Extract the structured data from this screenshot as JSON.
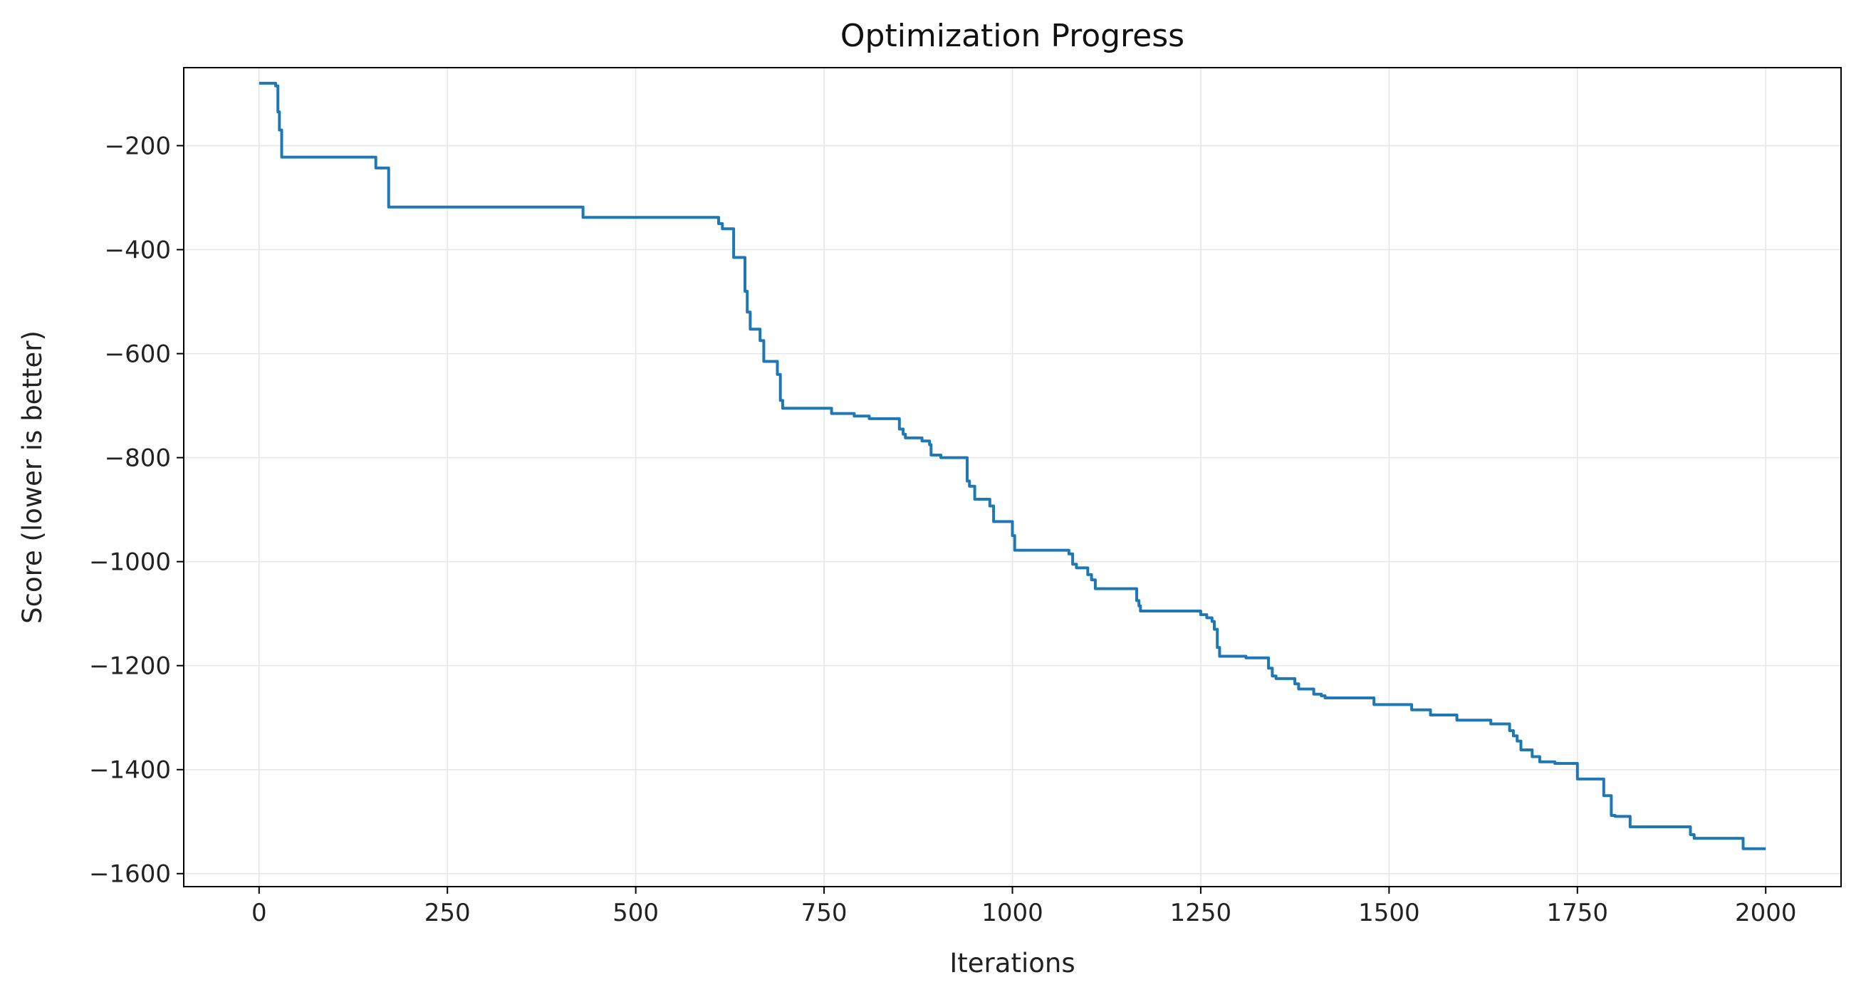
{
  "chart_data": {
    "type": "line",
    "title": "Optimization Progress",
    "xlabel": "Iterations",
    "ylabel": "Score (lower is better)",
    "xlim": [
      -100,
      2100
    ],
    "ylim": [
      -1625,
      -50
    ],
    "xticks": [
      0,
      250,
      500,
      750,
      1000,
      1250,
      1500,
      1750,
      2000
    ],
    "yticks": [
      -200,
      -400,
      -600,
      -800,
      -1000,
      -1200,
      -1400,
      -1600
    ],
    "xtick_labels": [
      "0",
      "250",
      "500",
      "750",
      "1000",
      "1250",
      "1500",
      "1750",
      "2000"
    ],
    "ytick_labels": [
      "−200",
      "−400",
      "−600",
      "−800",
      "−1000",
      "−1200",
      "−1400",
      "−1600"
    ],
    "grid": true,
    "legend": "none",
    "colors": {
      "line": "#1f77b4",
      "grid": "#e6e6e6",
      "axes": "#000000"
    },
    "series": [
      {
        "x": [
          0,
          22,
          25,
          27,
          30,
          155,
          172,
          430,
          610,
          615,
          630,
          645,
          648,
          652,
          665,
          670,
          680,
          688,
          692,
          695,
          760,
          790,
          810,
          850,
          855,
          858,
          860,
          880,
          890,
          892,
          905,
          940,
          943,
          950,
          955,
          970,
          975,
          1000,
          1003,
          1005,
          1075,
          1080,
          1085,
          1100,
          1105,
          1110,
          1165,
          1168,
          1170,
          1250,
          1258,
          1265,
          1268,
          1272,
          1275,
          1310,
          1340,
          1345,
          1350,
          1375,
          1380,
          1400,
          1410,
          1415,
          1480,
          1530,
          1555,
          1590,
          1635,
          1660,
          1665,
          1670,
          1675,
          1690,
          1700,
          1720,
          1750,
          1785,
          1790,
          1795,
          1800,
          1820,
          1900,
          1905,
          1970,
          2000
        ],
        "y": [
          -80,
          -85,
          -135,
          -170,
          -222,
          -243,
          -318,
          -338,
          -350,
          -360,
          -415,
          -480,
          -520,
          -553,
          -575,
          -615,
          -615,
          -640,
          -690,
          -705,
          -715,
          -720,
          -725,
          -745,
          -755,
          -762,
          -762,
          -768,
          -775,
          -795,
          -800,
          -845,
          -855,
          -880,
          -880,
          -893,
          -923,
          -950,
          -978,
          -978,
          -985,
          -1005,
          -1012,
          -1025,
          -1035,
          -1052,
          -1075,
          -1085,
          -1095,
          -1102,
          -1108,
          -1115,
          -1130,
          -1165,
          -1182,
          -1185,
          -1205,
          -1220,
          -1225,
          -1235,
          -1245,
          -1255,
          -1258,
          -1262,
          -1275,
          -1285,
          -1295,
          -1305,
          -1312,
          -1325,
          -1335,
          -1345,
          -1362,
          -1375,
          -1385,
          -1388,
          -1418,
          -1450,
          -1450,
          -1488,
          -1490,
          -1510,
          -1525,
          -1532,
          -1552,
          -1552
        ]
      }
    ]
  }
}
